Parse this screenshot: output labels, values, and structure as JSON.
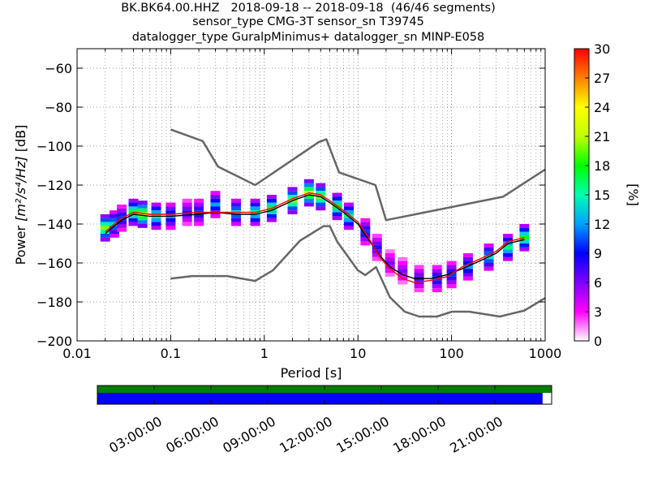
{
  "title_lines": [
    "BK.BK64.00.HHZ   2018-09-18 -- 2018-09-18  (46/46 segments)",
    "sensor_type CMG-3T sensor_sn T39745",
    "datalogger_type GuralpMinimus+ datalogger_sn MINP-E058"
  ],
  "chart_data": [
    {
      "type": "heatmap",
      "description_kind": "probabilistic power spectral density",
      "xlabel": "Period [s]",
      "ylabel_prefix": "Power ",
      "ylabel_units": "[m²/s⁴/Hz]",
      "ylabel_suffix": " [dB]",
      "xscale": "log",
      "xlim": [
        0.01,
        1000
      ],
      "ylim": [
        -200,
        -50
      ],
      "x_ticks": [
        0.01,
        0.1,
        1,
        10,
        100,
        1000
      ],
      "x_tick_labels": [
        "0.01",
        "0.1",
        "1",
        "10",
        "100",
        "1000"
      ],
      "y_ticks": [
        -200,
        -180,
        -160,
        -140,
        -120,
        -100,
        -80,
        -60
      ],
      "y_tick_labels": [
        "−200",
        "−180",
        "−160",
        "−140",
        "−120",
        "−100",
        "−80",
        "−60"
      ],
      "grid": true,
      "colorbar": {
        "label": "[%]",
        "range": [
          0,
          30
        ],
        "ticks": [
          0,
          3,
          6,
          9,
          12,
          15,
          18,
          21,
          24,
          27,
          30
        ],
        "tick_labels": [
          "0",
          "3",
          "6",
          "9",
          "12",
          "15",
          "18",
          "21",
          "24",
          "27",
          "30"
        ],
        "colormap": [
          "#ffffff",
          "#ff00ff",
          "#7f00ff",
          "#0000ff",
          "#00a0ff",
          "#00ffb0",
          "#00ff00",
          "#c0ff00",
          "#ffff00",
          "#ff8000",
          "#ff0000"
        ]
      },
      "series": [
        {
          "role": "noise-model-high",
          "color": "#666666",
          "x": [
            0.1,
            0.22,
            0.32,
            0.8,
            3.8,
            4.6,
            6.3,
            15.4,
            20,
            354.8,
            1000
          ],
          "y": [
            -91.5,
            -97.4,
            -110.5,
            -120,
            -98,
            -96.5,
            -113.5,
            -120,
            -138,
            -126,
            -112
          ]
        },
        {
          "role": "noise-model-low",
          "color": "#666666",
          "x": [
            0.1,
            0.17,
            0.4,
            0.8,
            1.24,
            2.4,
            4.3,
            5,
            6,
            10,
            12,
            15.6,
            21.9,
            31.6,
            45,
            70,
            101,
            154,
            328,
            600,
            1000
          ],
          "y": [
            -168,
            -166.7,
            -166.7,
            -169.2,
            -163.7,
            -148.6,
            -141.1,
            -141.1,
            -149,
            -163.8,
            -166.2,
            -162.1,
            -177.5,
            -185,
            -187.5,
            -187.5,
            -185,
            -185,
            -187.5,
            -184.4,
            -178
          ]
        },
        {
          "role": "mean",
          "color": "#000000",
          "x": [
            0.02,
            0.025,
            0.03,
            0.04,
            0.06,
            0.1,
            0.2,
            0.3,
            0.5,
            0.8,
            1.2,
            2,
            3,
            4,
            5,
            7,
            10,
            13,
            17,
            22,
            30,
            40,
            60,
            90,
            130,
            200,
            300,
            400,
            600
          ],
          "y": [
            -145,
            -141,
            -138,
            -135,
            -136,
            -136,
            -135,
            -134,
            -135,
            -135,
            -133,
            -128,
            -125,
            -126,
            -129,
            -134,
            -140,
            -148,
            -156,
            -162,
            -166,
            -168,
            -168,
            -166,
            -163,
            -159,
            -155,
            -150,
            -148
          ]
        },
        {
          "role": "mode",
          "color": "#ff0000",
          "x": [
            0.02,
            0.025,
            0.03,
            0.04,
            0.06,
            0.1,
            0.2,
            0.3,
            0.5,
            0.8,
            1.2,
            2,
            3,
            4,
            5,
            7,
            10,
            13,
            17,
            22,
            30,
            40,
            60,
            90,
            130,
            200,
            300,
            400,
            600
          ],
          "y": [
            -144,
            -140,
            -137,
            -134,
            -135,
            -135,
            -134,
            -134,
            -134,
            -134,
            -132,
            -127,
            -124,
            -125,
            -128,
            -133,
            -139,
            -147,
            -157,
            -163,
            -168,
            -170,
            -169,
            -167,
            -162,
            -158,
            -154,
            -149,
            -147
          ]
        }
      ],
      "heat_cells": [
        {
          "x": 0.02,
          "y": -142,
          "pct": 20
        },
        {
          "x": 0.025,
          "y": -140,
          "pct": 14
        },
        {
          "x": 0.03,
          "y": -137,
          "pct": 10
        },
        {
          "x": 0.04,
          "y": -134,
          "pct": 18
        },
        {
          "x": 0.05,
          "y": -135,
          "pct": 22
        },
        {
          "x": 0.07,
          "y": -136,
          "pct": 16
        },
        {
          "x": 0.1,
          "y": -136,
          "pct": 12
        },
        {
          "x": 0.15,
          "y": -134,
          "pct": 8
        },
        {
          "x": 0.2,
          "y": -134,
          "pct": 10
        },
        {
          "x": 0.3,
          "y": -130,
          "pct": 12
        },
        {
          "x": 0.5,
          "y": -134,
          "pct": 14
        },
        {
          "x": 0.8,
          "y": -134,
          "pct": 16
        },
        {
          "x": 1.2,
          "y": -132,
          "pct": 18
        },
        {
          "x": 2,
          "y": -128,
          "pct": 20
        },
        {
          "x": 3,
          "y": -124,
          "pct": 22
        },
        {
          "x": 4,
          "y": -126,
          "pct": 20
        },
        {
          "x": 6,
          "y": -131,
          "pct": 18
        },
        {
          "x": 8,
          "y": -136,
          "pct": 16
        },
        {
          "x": 12,
          "y": -144,
          "pct": 10
        },
        {
          "x": 16,
          "y": -152,
          "pct": 8
        },
        {
          "x": 22,
          "y": -160,
          "pct": 6
        },
        {
          "x": 30,
          "y": -164,
          "pct": 6
        },
        {
          "x": 45,
          "y": -168,
          "pct": 8
        },
        {
          "x": 70,
          "y": -168,
          "pct": 10
        },
        {
          "x": 100,
          "y": -166,
          "pct": 10
        },
        {
          "x": 150,
          "y": -162,
          "pct": 12
        },
        {
          "x": 250,
          "y": -157,
          "pct": 14
        },
        {
          "x": 400,
          "y": -152,
          "pct": 16
        },
        {
          "x": 600,
          "y": -147,
          "pct": 18
        }
      ]
    },
    {
      "type": "timeline",
      "row_colors": [
        "#008000",
        "#0000ff"
      ],
      "coverage_fraction": [
        1.0,
        0.98
      ],
      "x_tick_labels": [
        "03:00:00",
        "06:00:00",
        "09:00:00",
        "12:00:00",
        "15:00:00",
        "18:00:00",
        "21:00:00"
      ]
    }
  ]
}
